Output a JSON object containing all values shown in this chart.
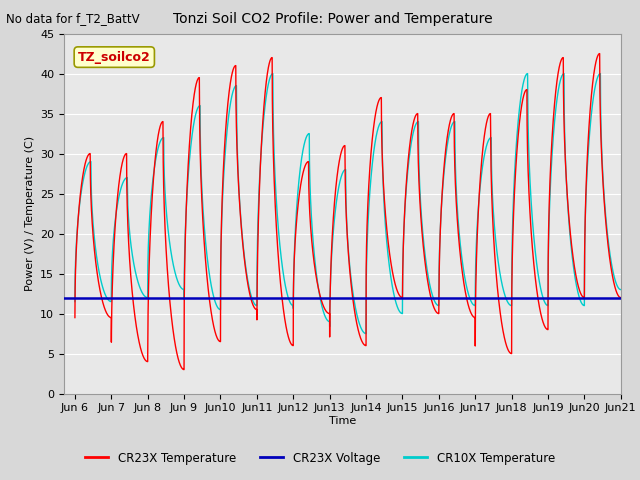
{
  "title": "Tonzi Soil CO2 Profile: Power and Temperature",
  "subtitle": "No data for f_T2_BattV",
  "ylabel": "Power (V) / Temperature (C)",
  "xlabel": "Time",
  "ylim": [
    0,
    45
  ],
  "xlim": [
    5.7,
    21.0
  ],
  "yticks": [
    0,
    5,
    10,
    15,
    20,
    25,
    30,
    35,
    40,
    45
  ],
  "xtick_labels": [
    "Jun 6",
    "Jun 7",
    "Jun 8",
    "Jun 9",
    "Jun 10",
    "Jun 11",
    "Jun 12",
    "Jun 13",
    "Jun 14",
    "Jun 15",
    "Jun 16",
    "Jun 17",
    "Jun 18",
    "Jun 19",
    "Jun 20",
    "Jun 21"
  ],
  "xtick_positions": [
    6,
    7,
    8,
    9,
    10,
    11,
    12,
    13,
    14,
    15,
    16,
    17,
    18,
    19,
    20,
    21
  ],
  "voltage_value": 12.0,
  "fig_bg_color": "#d8d8d8",
  "plot_bg_color": "#e8e8e8",
  "legend_label_box": "TZ_soilco2",
  "cr23x_color": "#ff0000",
  "voltage_color": "#0000bb",
  "cr10x_color": "#00cccc",
  "cr23x_peaks": [
    30.0,
    30.0,
    34.0,
    39.5,
    41.0,
    42.0,
    29.0,
    31.0,
    37.0,
    35.0,
    35.0,
    35.0,
    38.0,
    42.0,
    42.5
  ],
  "cr23x_troughs": [
    9.5,
    4.0,
    3.0,
    6.5,
    10.5,
    6.0,
    10.0,
    6.0,
    12.0,
    10.0,
    9.5,
    5.0,
    8.0,
    12.0,
    12.0
  ],
  "cr10x_peaks": [
    29.0,
    27.0,
    32.0,
    36.0,
    38.5,
    40.0,
    32.5,
    28.0,
    34.0,
    34.0,
    34.0,
    32.0,
    40.0,
    40.0,
    40.0
  ],
  "cr10x_troughs": [
    11.5,
    12.0,
    13.0,
    10.5,
    11.0,
    11.0,
    9.0,
    7.5,
    10.0,
    11.0,
    11.0,
    11.0,
    11.0,
    11.0,
    13.0
  ],
  "peak_phase": 0.42,
  "sharpness": 3.5
}
